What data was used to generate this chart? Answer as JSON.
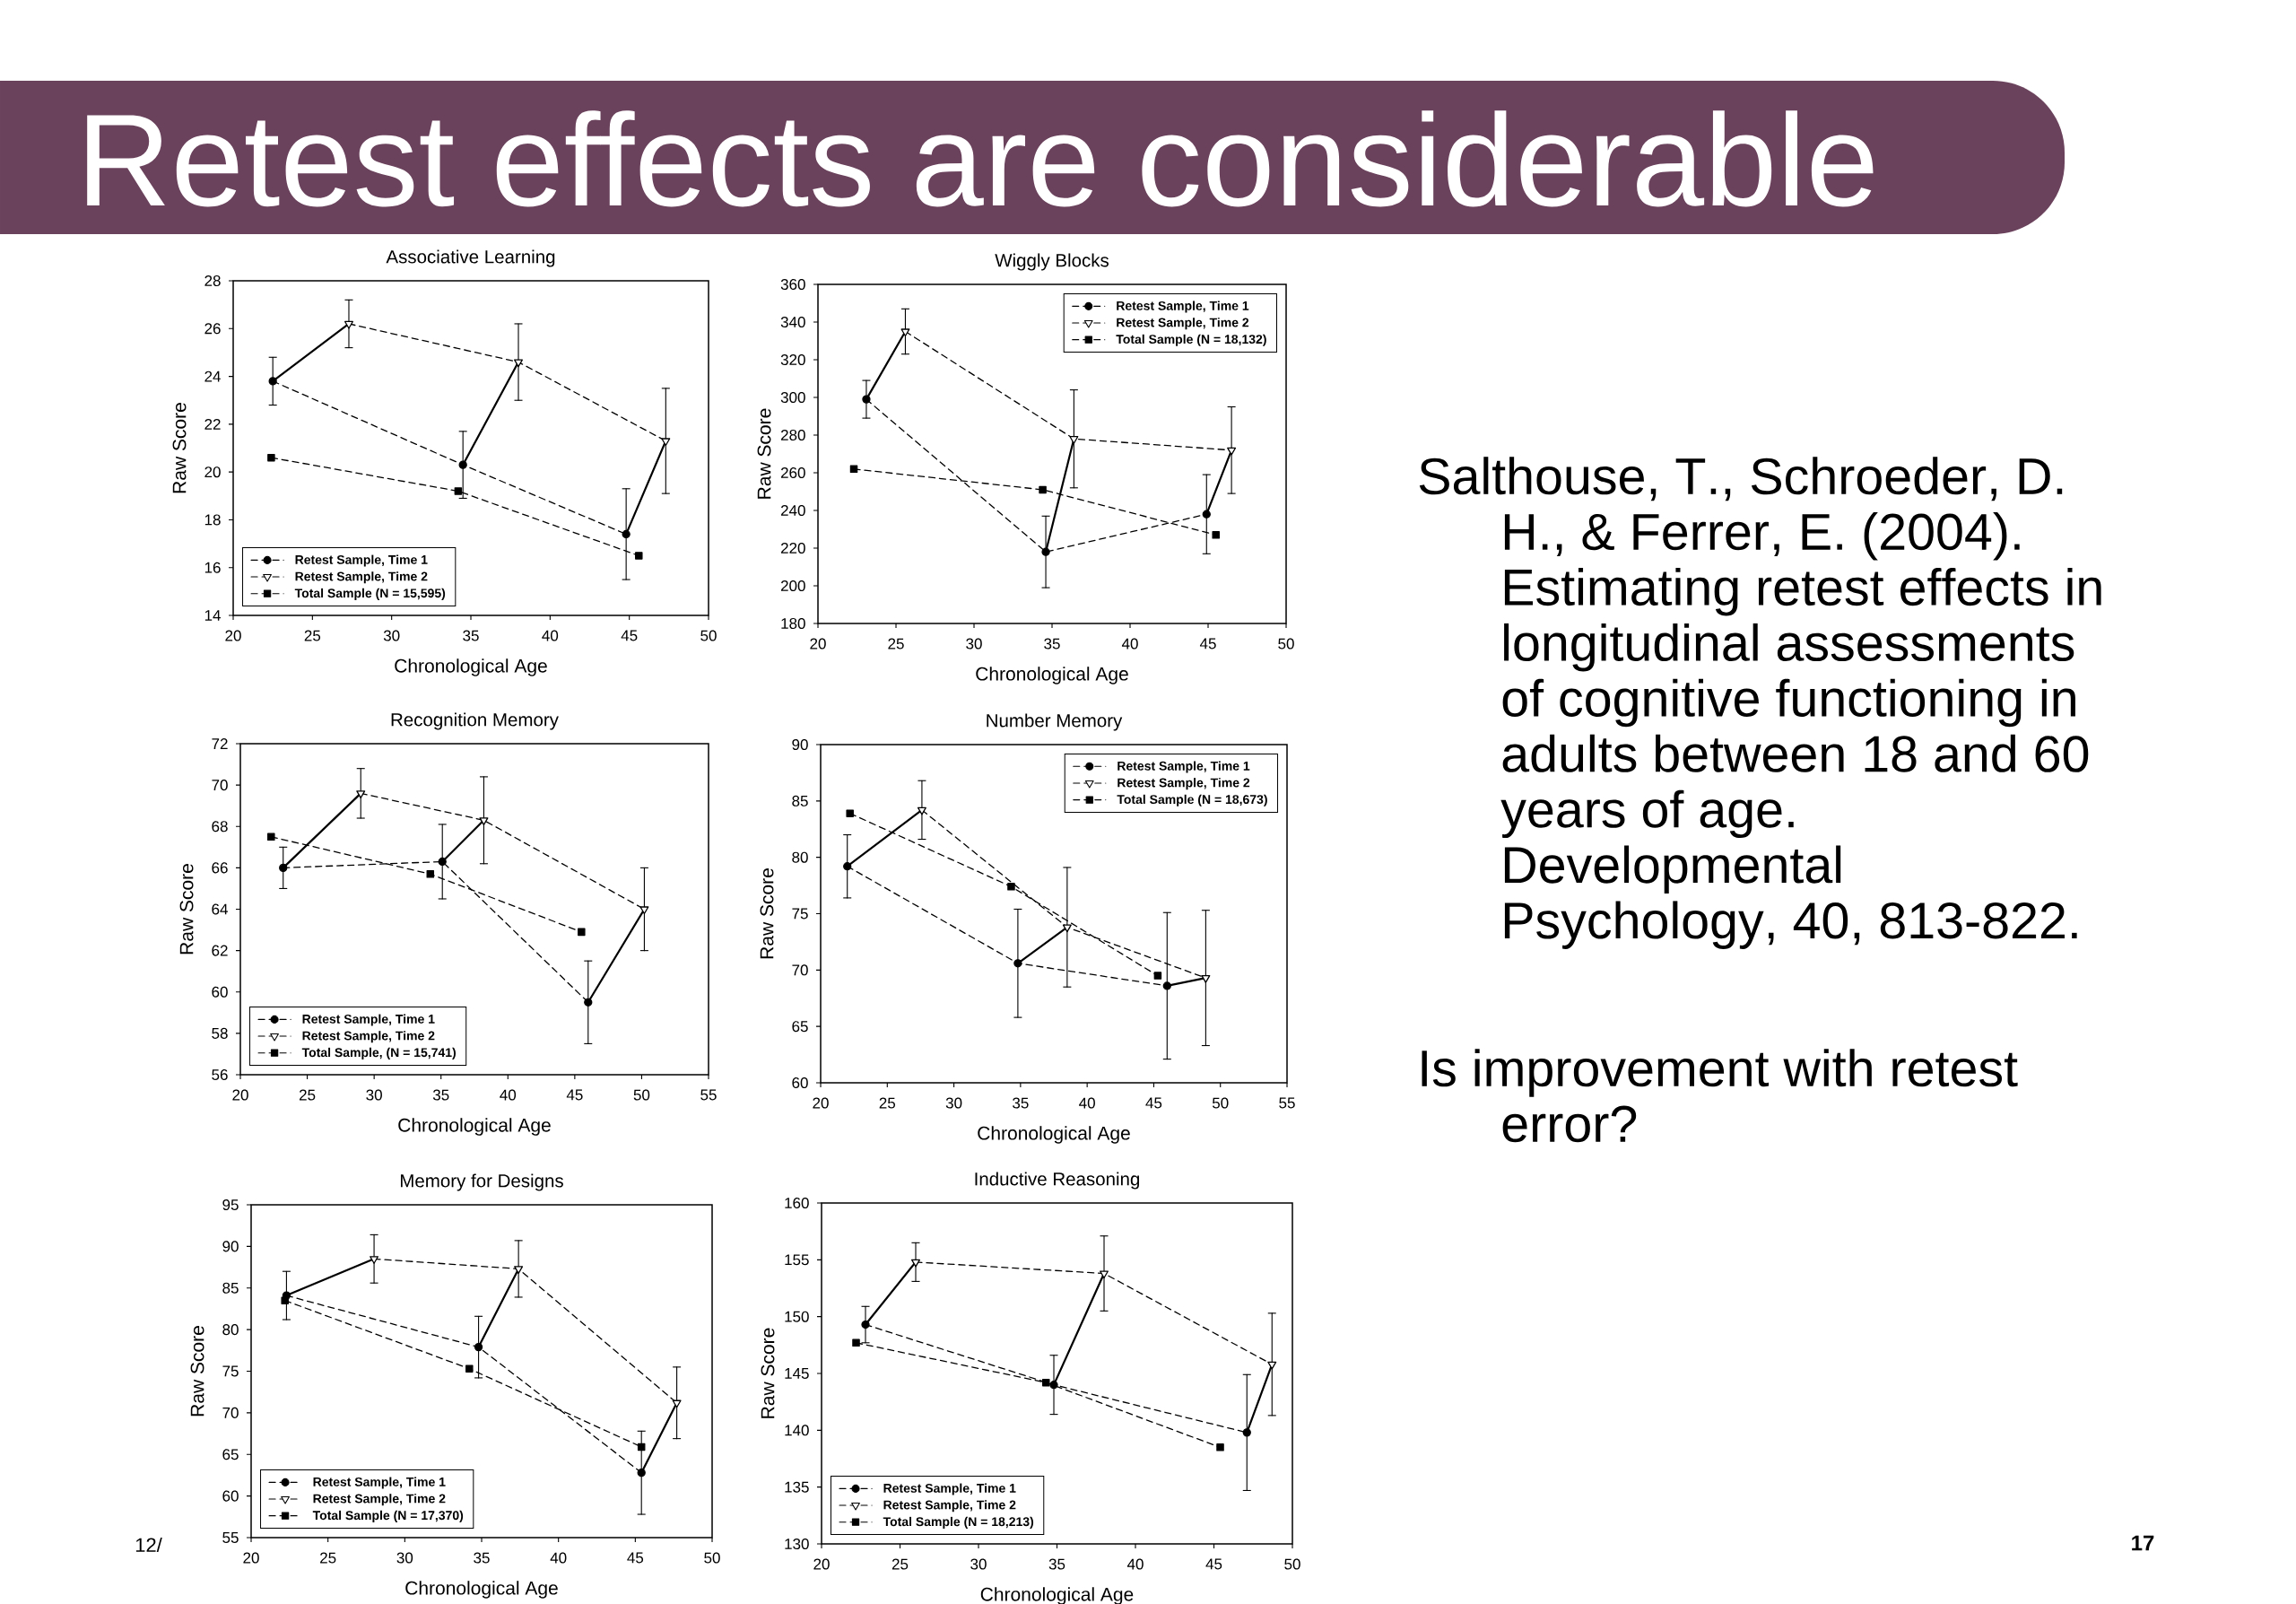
{
  "chart_data": [
    {
      "type": "other",
      "title": "Retest effects are considerable",
      "annotations": [
        "Salthouse, T., Schroeder, D. H., & Ferrer, E. (2004). Estimating retest effects in longitudinal assessments of cognitive functioning in adults between 18 and 60 years of age. Developmental Psychology, 40, 813-822.",
        "Is improvement with retest error?",
        "12/",
        "17"
      ]
    },
    {
      "type": "line",
      "title": "Associative Learning",
      "xlabel": "Chronological Age",
      "ylabel": "Raw Score",
      "xlim": [
        20,
        50
      ],
      "xticks": [
        20,
        25,
        30,
        35,
        40,
        45,
        50
      ],
      "ylim": [
        14,
        28
      ],
      "yticks": [
        14,
        16,
        18,
        20,
        22,
        24,
        26,
        28
      ],
      "legend": "bottom left",
      "series": [
        {
          "name": "Retest Sample, Time 1",
          "color": "#000000",
          "marker": "circle",
          "line_style": "dashed",
          "x": [
            22.5,
            34.5,
            44.8
          ],
          "values": [
            23.8,
            20.3,
            17.4
          ],
          "errors": [
            1.0,
            1.4,
            1.9
          ]
        },
        {
          "name": "Retest Sample, Time 2",
          "color": "#000000",
          "marker": "triangle",
          "line_style": "dashed",
          "x": [
            27.3,
            38.0,
            47.3
          ],
          "values": [
            26.2,
            24.6,
            21.3
          ],
          "errors": [
            1.0,
            1.6,
            2.2
          ]
        },
        {
          "name": "Total Sample (N = 15,595)",
          "color": "#000000",
          "marker": "square",
          "line_style": "dashed",
          "x": [
            22.4,
            34.2,
            45.6
          ],
          "values": [
            20.6,
            19.2,
            16.5
          ]
        },
        {
          "type": "line",
          "color": "#000000",
          "marker": "none",
          "line_style": "solid",
          "x": [
            22.5,
            27.3
          ],
          "values": [
            23.8,
            26.2
          ]
        },
        {
          "type": "line",
          "color": "#000000",
          "marker": "none",
          "line_style": "solid",
          "x": [
            34.5,
            38.0
          ],
          "values": [
            20.3,
            24.6
          ]
        },
        {
          "type": "line",
          "color": "#000000",
          "marker": "none",
          "line_style": "solid",
          "x": [
            44.8,
            47.3
          ],
          "values": [
            17.4,
            21.3
          ]
        }
      ]
    },
    {
      "type": "line",
      "title": "Wiggly Blocks",
      "xlabel": "Chronological Age",
      "ylabel": "Raw Score",
      "xlim": [
        20,
        50
      ],
      "xticks": [
        20,
        25,
        30,
        35,
        40,
        45,
        50
      ],
      "ylim": [
        180,
        360
      ],
      "yticks": [
        180,
        200,
        220,
        240,
        260,
        280,
        300,
        320,
        340,
        360
      ],
      "legend": "top right",
      "series": [
        {
          "name": "Retest Sample, Time 1",
          "color": "#000000",
          "marker": "circle",
          "line_style": "dashed",
          "x": [
            23.1,
            34.6,
            44.9
          ],
          "values": [
            299,
            218,
            238
          ],
          "errors": [
            10,
            19,
            21
          ]
        },
        {
          "name": "Retest Sample, Time 2",
          "color": "#000000",
          "marker": "triangle",
          "line_style": "dashed",
          "x": [
            25.6,
            36.4,
            46.5
          ],
          "values": [
            335,
            278,
            272
          ],
          "errors": [
            12,
            26,
            23
          ]
        },
        {
          "name": "Total Sample (N = 18,132)",
          "color": "#000000",
          "marker": "square",
          "line_style": "dashed",
          "x": [
            22.3,
            34.4,
            45.5
          ],
          "values": [
            262,
            251,
            227
          ]
        },
        {
          "type": "line",
          "color": "#000000",
          "marker": "none",
          "line_style": "solid",
          "x": [
            23.1,
            25.6
          ],
          "values": [
            299,
            335
          ]
        },
        {
          "type": "line",
          "color": "#000000",
          "marker": "none",
          "line_style": "solid",
          "x": [
            34.6,
            36.4
          ],
          "values": [
            218,
            278
          ]
        },
        {
          "type": "line",
          "color": "#000000",
          "marker": "none",
          "line_style": "solid",
          "x": [
            44.9,
            46.5
          ],
          "values": [
            238,
            272
          ]
        }
      ]
    },
    {
      "type": "line",
      "title": "Recognition Memory",
      "xlabel": "Chronological Age",
      "ylabel": "Raw Score",
      "xlim": [
        20,
        55
      ],
      "xticks": [
        20,
        25,
        30,
        35,
        40,
        45,
        50,
        55
      ],
      "ylim": [
        56,
        72
      ],
      "yticks": [
        56,
        58,
        60,
        62,
        64,
        66,
        68,
        70,
        72
      ],
      "legend": "bottom left",
      "series": [
        {
          "name": "Retest Sample, Time 1",
          "color": "#000000",
          "marker": "circle",
          "line_style": "dashed",
          "x": [
            23.2,
            35.1,
            46.0
          ],
          "values": [
            66.0,
            66.3,
            59.5
          ],
          "errors": [
            1.0,
            1.8,
            2.0
          ]
        },
        {
          "name": "Retest Sample, Time 2",
          "color": "#000000",
          "marker": "triangle",
          "line_style": "dashed",
          "x": [
            29.0,
            38.2,
            50.2
          ],
          "values": [
            69.6,
            68.3,
            64.0
          ],
          "errors": [
            1.2,
            2.1,
            2.0
          ]
        },
        {
          "name": "Total Sample, (N = 15,741)",
          "color": "#000000",
          "marker": "square",
          "line_style": "dashed",
          "x": [
            22.3,
            34.2,
            45.5
          ],
          "values": [
            67.5,
            65.7,
            62.9
          ]
        },
        {
          "type": "line",
          "color": "#000000",
          "marker": "none",
          "line_style": "solid",
          "x": [
            23.2,
            29.0
          ],
          "values": [
            66.0,
            69.6
          ]
        },
        {
          "type": "line",
          "color": "#000000",
          "marker": "none",
          "line_style": "solid",
          "x": [
            35.1,
            38.2
          ],
          "values": [
            66.3,
            68.3
          ]
        },
        {
          "type": "line",
          "color": "#000000",
          "marker": "none",
          "line_style": "solid",
          "x": [
            46.0,
            50.2
          ],
          "values": [
            59.5,
            64.0
          ]
        }
      ]
    },
    {
      "type": "line",
      "title": "Number Memory",
      "xlabel": "Chronological Age",
      "ylabel": "Raw Score",
      "xlim": [
        20,
        55
      ],
      "xticks": [
        20,
        25,
        30,
        35,
        40,
        45,
        50,
        55
      ],
      "ylim": [
        60,
        90
      ],
      "yticks": [
        60,
        65,
        70,
        75,
        80,
        85,
        90
      ],
      "legend": "top right",
      "series": [
        {
          "name": "Retest Sample, Time 1",
          "color": "#000000",
          "marker": "circle",
          "line_style": "dashed",
          "x": [
            22.0,
            34.8,
            46.0
          ],
          "values": [
            79.2,
            70.6,
            68.6
          ],
          "errors": [
            2.8,
            4.8,
            6.5
          ]
        },
        {
          "name": "Retest Sample, Time 2",
          "color": "#000000",
          "marker": "triangle",
          "line_style": "dashed",
          "x": [
            27.6,
            38.5,
            48.9
          ],
          "values": [
            84.2,
            73.8,
            69.3
          ],
          "errors": [
            2.6,
            5.3,
            6.0
          ]
        },
        {
          "name": "Total Sample (N = 18,673)",
          "color": "#000000",
          "marker": "square",
          "line_style": "dashed",
          "x": [
            22.2,
            34.3,
            45.3
          ],
          "values": [
            83.9,
            77.4,
            69.5
          ]
        },
        {
          "type": "line",
          "color": "#000000",
          "marker": "none",
          "line_style": "solid",
          "x": [
            22.0,
            27.6
          ],
          "values": [
            79.2,
            84.2
          ]
        },
        {
          "type": "line",
          "color": "#000000",
          "marker": "none",
          "line_style": "solid",
          "x": [
            34.8,
            38.5
          ],
          "values": [
            70.6,
            73.8
          ]
        },
        {
          "type": "line",
          "color": "#000000",
          "marker": "none",
          "line_style": "solid",
          "x": [
            46.0,
            48.9
          ],
          "values": [
            68.6,
            69.3
          ]
        }
      ]
    },
    {
      "type": "line",
      "title": "Memory for Designs",
      "xlabel": "Chronological Age",
      "ylabel": "Raw Score",
      "xlim": [
        20,
        50
      ],
      "xticks": [
        20,
        25,
        30,
        35,
        40,
        45,
        50
      ],
      "ylim": [
        55,
        95
      ],
      "yticks": [
        55,
        60,
        65,
        70,
        75,
        80,
        85,
        90,
        95
      ],
      "legend": "bottom left",
      "series": [
        {
          "name": "Retest Sample, Time 1",
          "color": "#000000",
          "marker": "circle",
          "line_style": "dashed",
          "x": [
            22.3,
            34.8,
            45.4
          ],
          "values": [
            84.1,
            77.9,
            62.8
          ],
          "errors": [
            2.9,
            3.7,
            5.0
          ]
        },
        {
          "name": "Retest Sample, Time 2",
          "color": "#000000",
          "marker": "triangle",
          "line_style": "dashed",
          "x": [
            28.0,
            37.4,
            47.7
          ],
          "values": [
            88.5,
            87.3,
            71.2
          ],
          "errors": [
            2.9,
            3.4,
            4.3
          ]
        },
        {
          "name": "Total Sample (N = 17,370)",
          "color": "#000000",
          "marker": "square",
          "line_style": "dashed",
          "x": [
            22.2,
            34.2,
            45.4
          ],
          "values": [
            83.5,
            75.3,
            65.9
          ]
        },
        {
          "type": "line",
          "color": "#000000",
          "marker": "none",
          "line_style": "solid",
          "x": [
            22.3,
            28.0
          ],
          "values": [
            84.1,
            88.5
          ]
        },
        {
          "type": "line",
          "color": "#000000",
          "marker": "none",
          "line_style": "solid",
          "x": [
            34.8,
            37.4
          ],
          "values": [
            77.9,
            87.3
          ]
        },
        {
          "type": "line",
          "color": "#000000",
          "marker": "none",
          "line_style": "solid",
          "x": [
            45.4,
            47.7
          ],
          "values": [
            62.8,
            71.2
          ]
        }
      ]
    },
    {
      "type": "line",
      "title": "Inductive Reasoning",
      "xlabel": "Chronological Age",
      "ylabel": "Raw Score",
      "xlim": [
        20,
        50
      ],
      "xticks": [
        20,
        25,
        30,
        35,
        40,
        45,
        50
      ],
      "ylim": [
        130,
        160
      ],
      "yticks": [
        130,
        135,
        140,
        145,
        150,
        155,
        160
      ],
      "legend": "bottom left",
      "series": [
        {
          "name": "Retest Sample, Time 1",
          "color": "#000000",
          "marker": "circle",
          "line_style": "dashed",
          "x": [
            22.8,
            34.8,
            47.1
          ],
          "values": [
            149.3,
            144.0,
            139.8
          ],
          "errors": [
            1.6,
            2.6,
            5.1
          ]
        },
        {
          "name": "Retest Sample, Time 2",
          "color": "#000000",
          "marker": "triangle",
          "line_style": "dashed",
          "x": [
            26.0,
            38.0,
            48.7
          ],
          "values": [
            154.8,
            153.8,
            145.8
          ],
          "errors": [
            1.7,
            3.3,
            4.5
          ]
        },
        {
          "name": "Total Sample (N = 18,213)",
          "color": "#000000",
          "marker": "square",
          "line_style": "dashed",
          "x": [
            22.2,
            34.3,
            45.4
          ],
          "values": [
            147.7,
            144.2,
            138.5
          ]
        },
        {
          "type": "line",
          "color": "#000000",
          "marker": "none",
          "line_style": "solid",
          "x": [
            22.8,
            26.0
          ],
          "values": [
            149.3,
            154.8
          ]
        },
        {
          "type": "line",
          "color": "#000000",
          "marker": "none",
          "line_style": "solid",
          "x": [
            34.8,
            38.0
          ],
          "values": [
            144.0,
            153.8
          ]
        },
        {
          "type": "line",
          "color": "#000000",
          "marker": "none",
          "line_style": "solid",
          "x": [
            47.1,
            48.7
          ],
          "values": [
            139.8,
            145.8
          ]
        }
      ]
    }
  ]
}
